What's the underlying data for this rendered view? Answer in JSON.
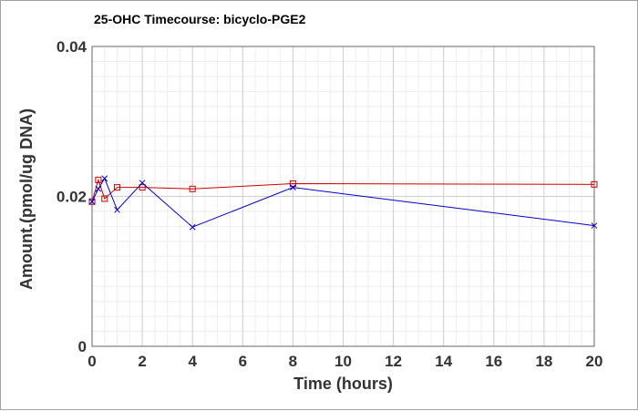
{
  "chart_data": {
    "type": "line",
    "title": "25-OHC Timecourse: bicyclo-PGE2",
    "xlabel": "Time (hours)",
    "ylabel": "Amount.(pmol/ug DNA)",
    "xlim": [
      0,
      20
    ],
    "ylim": [
      0,
      0.04
    ],
    "x_ticks": [
      0,
      2,
      4,
      6,
      8,
      10,
      12,
      14,
      16,
      18,
      20
    ],
    "y_ticks": [
      0,
      0.02,
      0.04
    ],
    "y_tick_labels": [
      "0",
      "0.02",
      "0.04"
    ],
    "grid": true,
    "series": [
      {
        "marker": "square",
        "color": "#cc0000",
        "x": [
          0,
          0.25,
          0.5,
          1,
          2,
          4,
          8,
          20
        ],
        "y": [
          0.0193,
          0.0222,
          0.0197,
          0.0212,
          0.0212,
          0.021,
          0.0217,
          0.0216
        ]
      },
      {
        "marker": "x",
        "color": "#0000cc",
        "x": [
          0,
          0.25,
          0.5,
          1,
          2,
          4,
          8,
          20
        ],
        "y": [
          0.0193,
          0.021,
          0.0224,
          0.0182,
          0.0218,
          0.0159,
          0.0212,
          0.0161
        ]
      }
    ]
  }
}
